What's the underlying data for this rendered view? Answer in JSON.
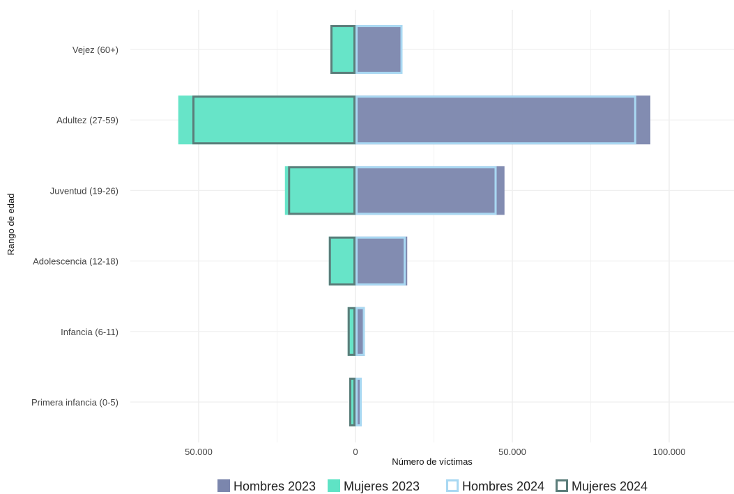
{
  "chart_data": {
    "type": "bar",
    "orientation": "horizontal",
    "xlabel": "Número de víctimas",
    "ylabel": "Rango de edad",
    "xlim": [
      -57000,
      120000
    ],
    "xticks": [
      -50000,
      0,
      50000,
      100000
    ],
    "xtick_labels": [
      "50.000",
      "0",
      "50.000",
      "100.000"
    ],
    "grid": true,
    "legend_position": "bottom",
    "categories": [
      "Vejez (60+)",
      "Adultez (27-59)",
      "Juventud (19-26)",
      "Adolescencia (12-18)",
      "Infancia (6-11)",
      "Primera infancia (0-5)"
    ],
    "series": [
      {
        "name": "Hombres 2023",
        "style": "filled",
        "color": "#7b86ad",
        "values": [
          15000,
          94000,
          47500,
          16500,
          3000,
          1500
        ]
      },
      {
        "name": "Mujeres 2023",
        "style": "filled",
        "color": "#5fe3c5",
        "values": [
          -8000,
          -56500,
          -22500,
          -8500,
          -2500,
          -1500
        ]
      },
      {
        "name": "Hombres 2024",
        "style": "outline",
        "color": "#a9d8f2",
        "values": [
          15000,
          89500,
          45000,
          16000,
          3000,
          2000
        ]
      },
      {
        "name": "Mujeres 2024",
        "style": "outline",
        "color": "#5b7d7a",
        "values": [
          -8000,
          -52000,
          -21500,
          -8500,
          -2500,
          -2000
        ]
      }
    ]
  }
}
